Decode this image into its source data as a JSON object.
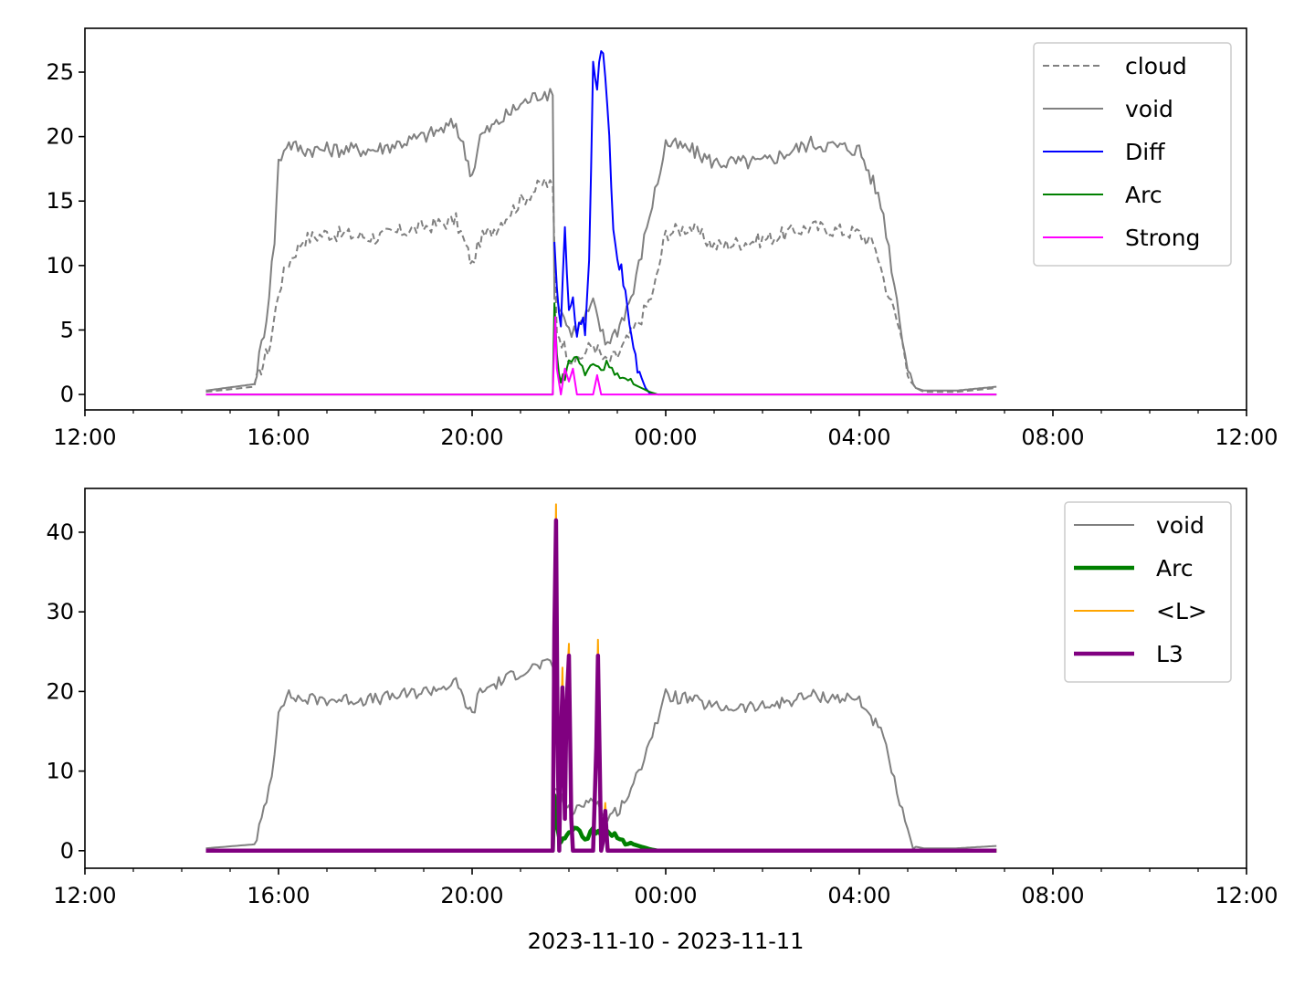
{
  "figure": {
    "xlabel": "2023-11-10 - 2023-11-11"
  },
  "chart_data": [
    {
      "type": "line",
      "xlim": [
        "12:00",
        "12:00 (+1 day)"
      ],
      "ylim": [
        -1.2,
        28.4
      ],
      "x_ticks": [
        "12:00",
        "16:00",
        "20:00",
        "00:00",
        "04:00",
        "08:00",
        "12:00"
      ],
      "y_ticks": [
        "0",
        "5",
        "10",
        "15",
        "20",
        "25"
      ],
      "y_tick_values": [
        0,
        5,
        10,
        15,
        20,
        25
      ],
      "legend_position": "top-right",
      "legend": [
        "cloud",
        "void",
        "Diff",
        "Arc",
        "Strong"
      ],
      "series": [
        {
          "name": "cloud",
          "color": "#808080",
          "style": "dashed",
          "x": [
            "14:30",
            "15:30",
            "15:50",
            "16:00",
            "16:10",
            "16:30",
            "17:00",
            "18:00",
            "19:00",
            "19:40",
            "19:55",
            "20:00",
            "20:10",
            "20:30",
            "21:00",
            "21:30",
            "21:40",
            "21:45",
            "22:00",
            "22:10",
            "22:30",
            "22:45",
            "23:00",
            "23:20",
            "23:30",
            "23:45",
            "00:00",
            "00:30",
            "01:00",
            "02:00",
            "03:00",
            "04:00",
            "04:20",
            "04:30",
            "04:40",
            "04:50",
            "05:00",
            "05:10",
            "05:20",
            "06:00",
            "06:50"
          ],
          "y": [
            0.2,
            0.6,
            4,
            8,
            10,
            12,
            12.5,
            12.2,
            13,
            13.5,
            11,
            10,
            12,
            13,
            15,
            16.5,
            16,
            5,
            3,
            2.5,
            4,
            2.5,
            3,
            5,
            6,
            8,
            12.5,
            13,
            11.5,
            12,
            13,
            12.5,
            11.5,
            9,
            7,
            5,
            2,
            0.5,
            0.2,
            0.2,
            0.5
          ]
        },
        {
          "name": "void",
          "color": "#808080",
          "style": "solid",
          "x": [
            "14:30",
            "15:30",
            "15:45",
            "15:55",
            "16:00",
            "16:10",
            "16:30",
            "17:00",
            "18:00",
            "19:00",
            "19:40",
            "19:55",
            "20:00",
            "20:10",
            "20:30",
            "21:00",
            "21:30",
            "21:40",
            "21:42",
            "22:00",
            "22:10",
            "22:30",
            "22:45",
            "23:00",
            "23:20",
            "23:30",
            "23:40",
            "23:50",
            "00:00",
            "00:30",
            "01:00",
            "02:00",
            "03:00",
            "04:00",
            "04:20",
            "04:30",
            "04:40",
            "04:50",
            "05:00",
            "05:10",
            "05:20",
            "06:00",
            "06:50"
          ],
          "y": [
            0.3,
            0.8,
            6,
            12,
            18,
            19.5,
            19,
            19,
            19,
            20,
            21,
            18,
            17,
            20,
            21,
            22.5,
            23.5,
            23,
            8,
            5,
            5,
            7,
            4,
            5,
            8,
            11,
            14,
            16.5,
            19.5,
            19,
            18,
            18,
            19.5,
            19,
            16,
            14,
            10,
            6,
            2,
            0.5,
            0.3,
            0.3,
            0.6
          ]
        },
        {
          "name": "Diff",
          "color": "#0000ff",
          "style": "solid",
          "x": [
            "21:42",
            "21:45",
            "21:50",
            "21:55",
            "22:00",
            "22:05",
            "22:10",
            "22:15",
            "22:20",
            "22:25",
            "22:30",
            "22:35",
            "22:40",
            "22:45",
            "22:50",
            "22:55",
            "23:00",
            "23:05",
            "23:10",
            "23:15",
            "23:20",
            "23:25",
            "23:30",
            "23:35",
            "23:40",
            "23:45"
          ],
          "y": [
            12,
            8,
            5,
            13.5,
            6,
            8,
            4,
            6,
            5,
            10,
            26,
            24,
            27,
            25,
            20,
            13,
            10,
            10,
            8,
            5,
            3.5,
            2,
            1.5,
            0.5,
            0.1,
            0
          ],
          "domain": [
            "21:42",
            "23:45"
          ]
        },
        {
          "name": "Arc",
          "color": "#008000",
          "style": "solid",
          "x": [
            "14:30",
            "21:40",
            "21:42",
            "21:45",
            "21:50",
            "21:55",
            "22:00",
            "22:10",
            "22:20",
            "22:30",
            "22:40",
            "22:50",
            "23:00",
            "23:10",
            "23:20",
            "23:30",
            "23:40",
            "23:50",
            "06:50"
          ],
          "y": [
            0,
            0,
            7,
            3,
            1,
            1.5,
            2.5,
            3,
            1.5,
            2.5,
            2,
            2.5,
            1.5,
            1,
            0.8,
            0.5,
            0.2,
            0,
            0
          ]
        },
        {
          "name": "Strong",
          "color": "#ff00ff",
          "style": "solid",
          "x": [
            "14:30",
            "21:40",
            "21:43",
            "21:45",
            "21:50",
            "21:55",
            "22:00",
            "22:05",
            "22:10",
            "22:30",
            "22:35",
            "22:40",
            "06:50"
          ],
          "y": [
            0,
            0,
            6,
            2,
            0,
            2,
            1,
            2,
            0,
            0,
            1.5,
            0,
            0
          ]
        }
      ]
    },
    {
      "type": "line",
      "xlim": [
        "12:00",
        "12:00 (+1 day)"
      ],
      "ylim": [
        -2.2,
        45.5
      ],
      "x_ticks": [
        "12:00",
        "16:00",
        "20:00",
        "00:00",
        "04:00",
        "08:00",
        "12:00"
      ],
      "y_ticks": [
        "0",
        "10",
        "20",
        "30",
        "40"
      ],
      "y_tick_values": [
        0,
        10,
        20,
        30,
        40
      ],
      "legend_position": "top-right",
      "legend": [
        "void",
        "Arc",
        "<L>",
        "L3"
      ],
      "series": [
        {
          "name": "void",
          "color": "#808080",
          "style": "solid",
          "x": [
            "14:30",
            "15:30",
            "15:45",
            "15:55",
            "16:00",
            "16:10",
            "16:30",
            "17:00",
            "18:00",
            "19:00",
            "19:40",
            "19:55",
            "20:00",
            "20:10",
            "20:30",
            "21:00",
            "21:30",
            "21:40",
            "21:42",
            "22:00",
            "22:10",
            "22:30",
            "22:45",
            "23:00",
            "23:20",
            "23:30",
            "23:40",
            "23:50",
            "00:00",
            "00:30",
            "01:00",
            "02:00",
            "03:00",
            "04:00",
            "04:20",
            "04:30",
            "04:40",
            "04:50",
            "05:00",
            "05:10",
            "05:20",
            "06:00",
            "06:50"
          ],
          "y": [
            0.3,
            0.8,
            6,
            12,
            18,
            19.5,
            19,
            19,
            19,
            20,
            21,
            18,
            17,
            20,
            21,
            22.5,
            23.5,
            23,
            8,
            5,
            5,
            7,
            4,
            5,
            8,
            11,
            14,
            16.5,
            19.5,
            19,
            18,
            18,
            19.5,
            19,
            16,
            14,
            10,
            6,
            2,
            0.5,
            0.3,
            0.3,
            0.6
          ]
        },
        {
          "name": "Arc",
          "color": "#008000",
          "style": "thick",
          "x": [
            "14:30",
            "21:40",
            "21:42",
            "21:45",
            "21:50",
            "21:55",
            "22:00",
            "22:10",
            "22:20",
            "22:30",
            "22:40",
            "22:50",
            "23:00",
            "23:10",
            "23:20",
            "23:30",
            "23:40",
            "23:50",
            "06:50"
          ],
          "y": [
            0,
            0,
            7,
            3,
            1,
            1.5,
            2.5,
            3,
            1.5,
            2.5,
            2,
            2.5,
            1.5,
            1,
            0.8,
            0.5,
            0.2,
            0,
            0
          ]
        },
        {
          "name": "<L>",
          "color": "#ffa500",
          "style": "solid",
          "x": [
            "14:30",
            "21:40",
            "21:42",
            "21:44",
            "21:46",
            "21:48",
            "21:50",
            "21:52",
            "21:55",
            "21:57",
            "22:00",
            "22:03",
            "22:05",
            "22:10",
            "22:30",
            "22:34",
            "22:36",
            "22:38",
            "22:40",
            "22:42",
            "22:45",
            "22:48",
            "22:50",
            "06:50"
          ],
          "y": [
            0,
            0,
            30,
            43.5,
            15,
            1,
            15,
            23,
            5,
            20,
            26,
            5,
            0,
            0,
            0,
            14,
            26.5,
            14,
            0,
            2,
            6,
            1,
            0,
            0
          ]
        },
        {
          "name": "L3",
          "color": "#800080",
          "style": "thick",
          "x": [
            "14:30",
            "21:40",
            "21:42",
            "21:44",
            "21:46",
            "21:48",
            "21:50",
            "21:52",
            "21:55",
            "21:57",
            "22:00",
            "22:03",
            "22:05",
            "22:10",
            "22:30",
            "22:34",
            "22:36",
            "22:38",
            "22:40",
            "22:42",
            "22:45",
            "22:48",
            "22:50",
            "06:50"
          ],
          "y": [
            0,
            0,
            28,
            41.5,
            14,
            0,
            14,
            20.5,
            4,
            18,
            24.5,
            4,
            0,
            0,
            0,
            13,
            24.5,
            12,
            0,
            1,
            5,
            0,
            0,
            0
          ]
        }
      ]
    }
  ]
}
